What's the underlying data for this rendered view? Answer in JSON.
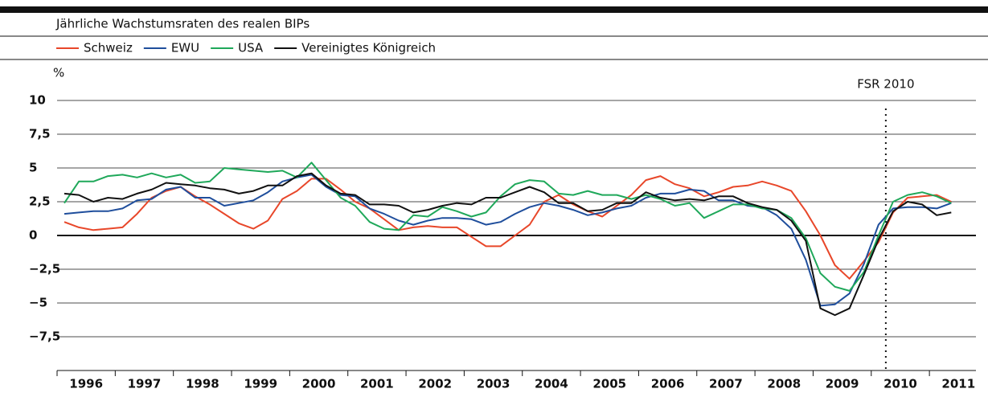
{
  "chart_data": {
    "type": "line",
    "title": "Jährliche Wachstumsraten des realen BIPs",
    "ylabel": "%",
    "x": [
      1996.125,
      1996.375,
      1996.625,
      1996.875,
      1997.125,
      1997.375,
      1997.625,
      1997.875,
      1998.125,
      1998.375,
      1998.625,
      1998.875,
      1999.125,
      1999.375,
      1999.625,
      1999.875,
      2000.125,
      2000.375,
      2000.625,
      2000.875,
      2001.125,
      2001.375,
      2001.625,
      2001.875,
      2002.125,
      2002.375,
      2002.625,
      2002.875,
      2003.125,
      2003.375,
      2003.625,
      2003.875,
      2004.125,
      2004.375,
      2004.625,
      2004.875,
      2005.125,
      2005.375,
      2005.625,
      2005.875,
      2006.125,
      2006.375,
      2006.625,
      2006.875,
      2007.125,
      2007.375,
      2007.625,
      2007.875,
      2008.125,
      2008.375,
      2008.625,
      2008.875,
      2009.125,
      2009.375,
      2009.625,
      2009.875,
      2010.125,
      2010.375,
      2010.625,
      2010.875,
      2011.125,
      2011.375
    ],
    "series": [
      {
        "name": "Schweiz",
        "color": "#e8472a",
        "values": [
          1.0,
          0.6,
          0.4,
          0.5,
          0.6,
          1.6,
          2.8,
          3.3,
          3.6,
          2.9,
          2.3,
          1.6,
          0.9,
          0.5,
          1.1,
          2.7,
          3.3,
          4.2,
          4.2,
          3.4,
          2.5,
          2.0,
          1.2,
          0.4,
          0.6,
          0.7,
          0.6,
          0.6,
          -0.1,
          -0.8,
          -0.8,
          0.0,
          0.8,
          2.5,
          3.0,
          2.3,
          1.8,
          1.4,
          2.2,
          3.0,
          4.1,
          4.4,
          3.8,
          3.5,
          2.9,
          3.2,
          3.6,
          3.7,
          4.0,
          3.7,
          3.3,
          1.8,
          0.0,
          -2.2,
          -3.2,
          -1.9,
          -0.5,
          1.7,
          2.8,
          2.9,
          3.0,
          2.5
        ]
      },
      {
        "name": "EWU",
        "color": "#1f4e9c",
        "values": [
          1.6,
          1.7,
          1.8,
          1.8,
          2.0,
          2.6,
          2.7,
          3.4,
          3.6,
          2.8,
          2.8,
          2.2,
          2.4,
          2.6,
          3.2,
          4.0,
          4.3,
          4.5,
          3.6,
          3.0,
          2.9,
          2.0,
          1.6,
          1.1,
          0.8,
          1.1,
          1.3,
          1.3,
          1.2,
          0.8,
          1.0,
          1.6,
          2.1,
          2.4,
          2.2,
          1.9,
          1.5,
          1.7,
          2.0,
          2.2,
          2.8,
          3.1,
          3.1,
          3.4,
          3.3,
          2.6,
          2.6,
          2.2,
          2.1,
          1.5,
          0.5,
          -1.8,
          -5.2,
          -5.1,
          -4.3,
          -2.1,
          0.8,
          2.0,
          2.1,
          2.1,
          2.0,
          2.4
        ]
      },
      {
        "name": "USA",
        "color": "#1fa85a",
        "values": [
          2.4,
          4.0,
          4.0,
          4.4,
          4.5,
          4.3,
          4.6,
          4.3,
          4.5,
          3.9,
          4.0,
          5.0,
          4.9,
          4.8,
          4.7,
          4.8,
          4.3,
          5.4,
          4.1,
          2.8,
          2.2,
          1.0,
          0.5,
          0.4,
          1.5,
          1.4,
          2.1,
          1.8,
          1.4,
          1.7,
          2.9,
          3.8,
          4.1,
          4.0,
          3.1,
          3.0,
          3.3,
          3.0,
          3.0,
          2.7,
          3.0,
          2.7,
          2.2,
          2.4,
          1.3,
          1.8,
          2.3,
          2.3,
          2.0,
          1.9,
          1.3,
          -0.2,
          -2.8,
          -3.8,
          -4.1,
          -2.7,
          0.0,
          2.5,
          3.0,
          3.2,
          2.9,
          2.4
        ]
      },
      {
        "name": "Vereinigtes Königreich",
        "color": "#111111",
        "values": [
          3.1,
          3.0,
          2.5,
          2.8,
          2.7,
          3.1,
          3.4,
          3.9,
          3.8,
          3.7,
          3.5,
          3.4,
          3.1,
          3.3,
          3.7,
          3.7,
          4.4,
          4.6,
          3.7,
          3.1,
          3.0,
          2.3,
          2.3,
          2.2,
          1.7,
          1.9,
          2.2,
          2.4,
          2.3,
          2.8,
          2.8,
          3.2,
          3.6,
          3.2,
          2.4,
          2.4,
          1.8,
          1.9,
          2.4,
          2.4,
          3.2,
          2.8,
          2.6,
          2.7,
          2.6,
          2.9,
          2.9,
          2.4,
          2.1,
          1.9,
          1.1,
          -0.4,
          -5.4,
          -5.9,
          -5.4,
          -2.9,
          -0.3,
          1.8,
          2.5,
          2.3,
          1.5,
          1.7
        ]
      }
    ],
    "xlim": [
      1996,
      2011.8
    ],
    "xticks": [
      1996,
      1997,
      1998,
      1999,
      2000,
      2001,
      2002,
      2003,
      2004,
      2005,
      2006,
      2007,
      2008,
      2009,
      2010,
      2011
    ],
    "ylim": [
      -10,
      10
    ],
    "yticks": [
      10,
      {
        "value": 7.5,
        "label": "7,5"
      },
      5,
      {
        "value": 2.5,
        "label": "2,5"
      },
      0,
      {
        "value": -2.5,
        "label": "−2,5"
      },
      {
        "value": -5,
        "label": "−5"
      },
      {
        "value": -7.5,
        "label": "−7,5"
      }
    ],
    "grid": true,
    "annotations": [
      {
        "text": "FSR 2010",
        "x": 2010.25
      }
    ]
  }
}
